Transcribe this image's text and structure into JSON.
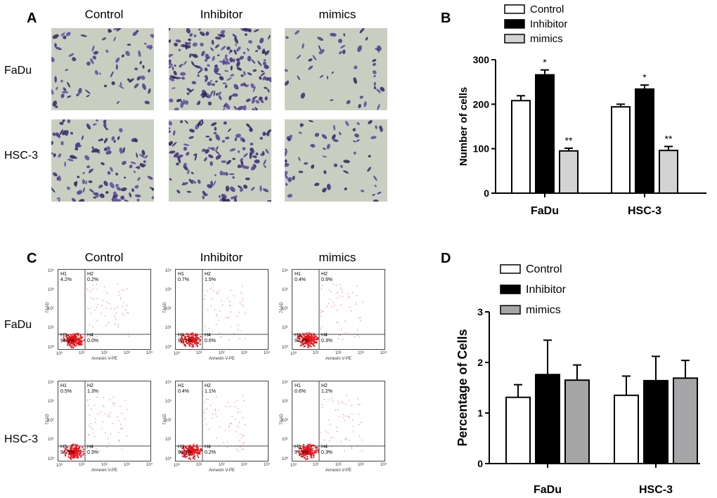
{
  "panel_a": {
    "letter": "A",
    "columns": [
      "Control",
      "Inhibitor",
      "mimics"
    ],
    "rows": [
      "FaDu",
      "HSC-3"
    ],
    "image_description_tags": [
      "transwell-stained-cells"
    ]
  },
  "panel_c": {
    "letter": "C",
    "columns": [
      "Control",
      "Inhibitor",
      "mimics"
    ],
    "rows": [
      "FaDu",
      "HSC-3"
    ],
    "y_axis_label": "7AAD",
    "x_axis_label": "Annexin V-PE",
    "ticks": [
      "10⁰",
      "10¹",
      "10²",
      "10³",
      "10⁴"
    ],
    "plots": [
      {
        "row": "FaDu",
        "col": "Control",
        "H1": "H1\n4.2%",
        "H2": "H2\n0.2%",
        "H3": "H3\n95.6%",
        "H4": "H4\n0.0%"
      },
      {
        "row": "FaDu",
        "col": "Inhibitor",
        "H1": "H1\n0.7%",
        "H2": "H2\n1.5%",
        "H3": "H3\n97.2%",
        "H4": "H4\n0.6%"
      },
      {
        "row": "FaDu",
        "col": "mimics",
        "H1": "H1\n0.4%",
        "H2": "H2\n0.9%",
        "H3": "H3\n98.3%",
        "H4": "H4\n0.3%"
      },
      {
        "row": "HSC-3",
        "col": "Control",
        "H1": "H1\n0.5%",
        "H2": "H2\n1.3%",
        "H3": "H3\n97.9%",
        "H4": "H4\n0.3%"
      },
      {
        "row": "HSC-3",
        "col": "Inhibitor",
        "H1": "H1\n0.4%",
        "H2": "H2\n1.1%",
        "H3": "H3\n98.3%",
        "H4": "H4\n0.2%"
      },
      {
        "row": "HSC-3",
        "col": "mimics",
        "H1": "H1\n0.6%",
        "H2": "H2\n1.2%",
        "H3": "H3\n97.8%",
        "H4": "H4\n0.3%"
      }
    ]
  },
  "chart_data": [
    {
      "panel": "B",
      "type": "bar",
      "categories": [
        "FaDu",
        "HSC-3"
      ],
      "series": [
        {
          "name": "Control",
          "color": "#ffffff",
          "values": [
            208,
            194
          ],
          "errors": [
            11,
            6
          ],
          "labels": [
            "",
            ""
          ]
        },
        {
          "name": "Inhibitor",
          "color": "#000000",
          "values": [
            266,
            234
          ],
          "errors": [
            11,
            9
          ],
          "labels": [
            "*",
            "*"
          ]
        },
        {
          "name": "mimics",
          "color": "#d3d3d3",
          "values": [
            95,
            96
          ],
          "errors": [
            6,
            9
          ],
          "labels": [
            "**",
            "**"
          ]
        }
      ],
      "title": "",
      "xlabel": "",
      "ylabel": "Number of cells",
      "ylim": [
        0,
        300
      ],
      "yticks": [
        0,
        100,
        200,
        300
      ],
      "legend_position": "top-right"
    },
    {
      "panel": "D",
      "type": "bar",
      "categories": [
        "FaDu",
        "HSC-3"
      ],
      "series": [
        {
          "name": "Control",
          "color": "#ffffff",
          "values": [
            1.31,
            1.35
          ],
          "errors": [
            0.25,
            0.38
          ],
          "labels": [
            "",
            ""
          ]
        },
        {
          "name": "Inhibitor",
          "color": "#000000",
          "values": [
            1.76,
            1.64
          ],
          "errors": [
            0.68,
            0.48
          ],
          "labels": [
            "",
            ""
          ]
        },
        {
          "name": "mimics",
          "color": "#a6a6a9",
          "values": [
            1.65,
            1.69
          ],
          "errors": [
            0.3,
            0.35
          ],
          "labels": [
            "",
            ""
          ]
        }
      ],
      "title": "",
      "xlabel": "",
      "ylabel": "Percentage of Cells",
      "ylim": [
        0,
        3
      ],
      "yticks": [
        0,
        1,
        2,
        3
      ],
      "legend_position": "top-left"
    }
  ]
}
